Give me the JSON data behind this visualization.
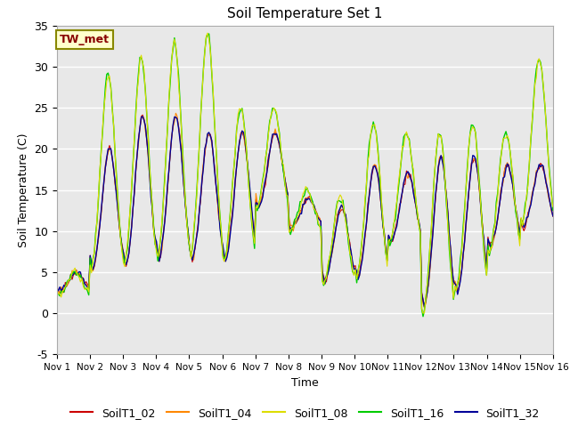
{
  "title": "Soil Temperature Set 1",
  "xlabel": "Time",
  "ylabel": "Soil Temperature (C)",
  "ylim": [
    -5,
    35
  ],
  "xlim": [
    0,
    15
  ],
  "xtick_labels": [
    "Nov 1",
    "Nov 2",
    "Nov 3",
    "Nov 4",
    "Nov 5",
    "Nov 6",
    "Nov 7",
    "Nov 8",
    "Nov 9",
    "Nov 10",
    "Nov 11",
    "Nov 12",
    "Nov 13",
    "Nov 14",
    "Nov 15",
    "Nov 16"
  ],
  "xtick_positions": [
    0,
    1,
    2,
    3,
    4,
    5,
    6,
    7,
    8,
    9,
    10,
    11,
    12,
    13,
    14,
    15
  ],
  "ytick_positions": [
    -5,
    0,
    5,
    10,
    15,
    20,
    25,
    30,
    35
  ],
  "line_colors": {
    "SoilT1_02": "#cc0000",
    "SoilT1_04": "#ff8800",
    "SoilT1_08": "#dddd00",
    "SoilT1_16": "#00cc00",
    "SoilT1_32": "#000099"
  },
  "line_widths": {
    "SoilT1_02": 0.8,
    "SoilT1_04": 0.8,
    "SoilT1_08": 0.8,
    "SoilT1_16": 1.0,
    "SoilT1_32": 1.0
  },
  "annotation_text": "TW_met",
  "annotation_fg": "#880000",
  "annotation_bg": "#ffffcc",
  "annotation_edge": "#888800",
  "background_color": "#e8e8e8",
  "figure_color": "#ffffff",
  "legend_entries": [
    "SoilT1_02",
    "SoilT1_04",
    "SoilT1_08",
    "SoilT1_16",
    "SoilT1_32"
  ]
}
